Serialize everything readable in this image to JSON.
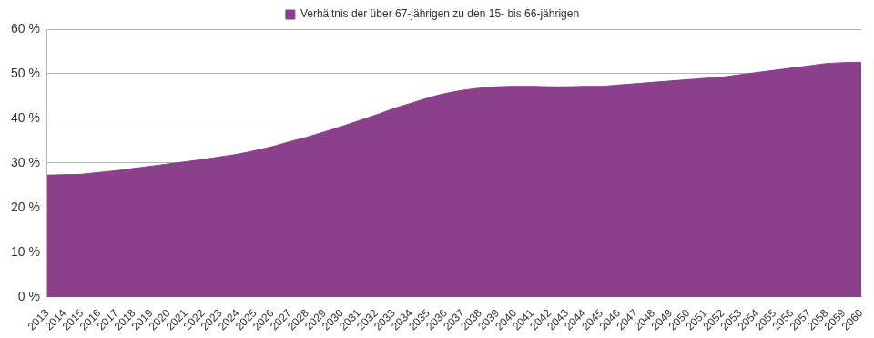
{
  "chart_data": {
    "type": "area",
    "categories": [
      "2013",
      "2014",
      "2015",
      "2016",
      "2017",
      "2018",
      "2019",
      "2020",
      "2021",
      "2022",
      "2023",
      "2024",
      "2025",
      "2026",
      "2027",
      "2028",
      "2029",
      "2030",
      "2031",
      "2032",
      "2033",
      "2034",
      "2035",
      "2036",
      "2037",
      "2038",
      "2039",
      "2040",
      "2041",
      "2042",
      "2043",
      "2044",
      "2045",
      "2046",
      "2047",
      "2048",
      "2049",
      "2050",
      "2051",
      "2052",
      "2053",
      "2054",
      "2055",
      "2056",
      "2057",
      "2058",
      "2059",
      "2060"
    ],
    "series": [
      {
        "name": "Verhältnis der über 67-jährigen zu den 15- bis 66-jährigen",
        "color": "#8b408b",
        "values": [
          27.3,
          27.4,
          27.5,
          27.9,
          28.3,
          28.8,
          29.3,
          29.8,
          30.3,
          30.8,
          31.4,
          32.0,
          32.8,
          33.7,
          34.8,
          35.8,
          37.0,
          38.2,
          39.5,
          40.8,
          42.2,
          43.4,
          44.6,
          45.6,
          46.3,
          46.8,
          47.1,
          47.2,
          47.2,
          47.1,
          47.1,
          47.2,
          47.2,
          47.5,
          47.8,
          48.1,
          48.4,
          48.7,
          49.0,
          49.3,
          49.8,
          50.3,
          50.8,
          51.3,
          51.8,
          52.3,
          52.5,
          52.6
        ]
      }
    ],
    "ylim": [
      0,
      60
    ],
    "yticks": [
      {
        "value": 0,
        "label": "0 %"
      },
      {
        "value": 10,
        "label": "10 %"
      },
      {
        "value": 20,
        "label": "20 %"
      },
      {
        "value": 30,
        "label": "30 %"
      },
      {
        "value": 40,
        "label": "40 %"
      },
      {
        "value": 50,
        "label": "50 %"
      },
      {
        "value": 60,
        "label": "60 %"
      }
    ],
    "grid": true,
    "legend": "top"
  }
}
